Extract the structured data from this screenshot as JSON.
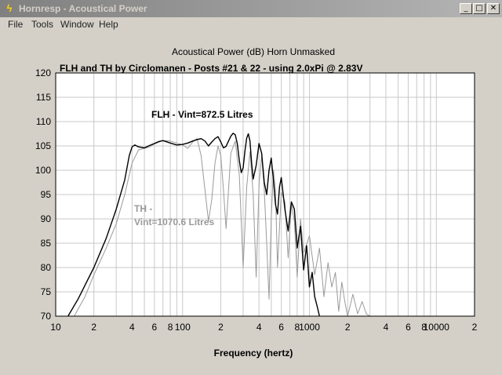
{
  "window": {
    "title": "Hornresp - Acoustical Power",
    "min_glyph": "_",
    "max_glyph": "□",
    "close_glyph": "✕"
  },
  "menu": [
    "File",
    "Tools",
    "Window",
    "Help"
  ],
  "chart_data": {
    "type": "line",
    "header": "Acoustical Power (dB)   Horn   Unmasked",
    "title": "FLH and TH by Circlomanen - Posts #21 & 22 - using 2.0xPi @ 2.83V",
    "xlabel": "Frequency (hertz)",
    "xscale": "log",
    "xlim": [
      10,
      20000
    ],
    "ylim": [
      70,
      120
    ],
    "y_ticks": [
      70,
      75,
      80,
      85,
      90,
      95,
      100,
      105,
      110,
      115,
      120
    ],
    "x_ticks": [
      {
        "v": 10,
        "label": "10"
      },
      {
        "v": 20,
        "label": "2"
      },
      {
        "v": 40,
        "label": "4"
      },
      {
        "v": 60,
        "label": "6"
      },
      {
        "v": 80,
        "label": "8"
      },
      {
        "v": 100,
        "label": "100"
      },
      {
        "v": 200,
        "label": "2"
      },
      {
        "v": 400,
        "label": "4"
      },
      {
        "v": 600,
        "label": "6"
      },
      {
        "v": 800,
        "label": "8"
      },
      {
        "v": 1000,
        "label": "1000"
      },
      {
        "v": 2000,
        "label": "2"
      },
      {
        "v": 4000,
        "label": "4"
      },
      {
        "v": 6000,
        "label": "6"
      },
      {
        "v": 8000,
        "label": "8"
      },
      {
        "v": 10000,
        "label": "10000"
      },
      {
        "v": 20000,
        "label": "2"
      }
    ],
    "grid": true,
    "series": [
      {
        "name": "FLH - Vint=872.5 Litres",
        "color": "#000000",
        "x": [
          12.5,
          15,
          20,
          25,
          30,
          35,
          38,
          40,
          42,
          45,
          50,
          55,
          60,
          65,
          70,
          80,
          90,
          100,
          110,
          120,
          130,
          140,
          150,
          160,
          170,
          180,
          190,
          200,
          210,
          220,
          230,
          240,
          250,
          260,
          270,
          280,
          290,
          300,
          310,
          320,
          330,
          340,
          350,
          360,
          380,
          400,
          420,
          440,
          460,
          480,
          500,
          520,
          540,
          560,
          580,
          600,
          640,
          680,
          720,
          760,
          800,
          850,
          900,
          950,
          1000,
          1050,
          1100,
          1150,
          1200
        ],
        "y": [
          70,
          73.5,
          80,
          86,
          92,
          98,
          103,
          104.8,
          105.2,
          104.8,
          104.6,
          105.1,
          105.5,
          105.9,
          106.1,
          105.6,
          105.2,
          105.3,
          105.6,
          106.0,
          106.3,
          106.5,
          106.0,
          105.0,
          105.8,
          106.5,
          106.9,
          105.8,
          104.6,
          104.9,
          106.0,
          107.0,
          107.6,
          107.3,
          105.5,
          102.0,
          99.5,
          100.5,
          104.0,
          106.6,
          107.5,
          106.0,
          101.5,
          98.2,
          101.0,
          105.5,
          103.5,
          97.5,
          95.0,
          100.0,
          102.5,
          98.0,
          93.0,
          91.0,
          96.5,
          98.5,
          92.0,
          87.5,
          93.5,
          92.0,
          84.0,
          88.5,
          79.5,
          84.5,
          76.0,
          79.0,
          74.0,
          72.0,
          70.0
        ]
      },
      {
        "name": "TH - Vint=1070.6 Litres",
        "color": "#9a9a9a",
        "x": [
          14,
          17,
          20,
          25,
          30,
          35,
          40,
          45,
          50,
          55,
          60,
          70,
          80,
          90,
          100,
          110,
          120,
          130,
          140,
          150,
          160,
          170,
          180,
          190,
          200,
          210,
          220,
          240,
          260,
          280,
          300,
          320,
          340,
          360,
          380,
          400,
          420,
          440,
          460,
          480,
          500,
          520,
          540,
          560,
          600,
          640,
          680,
          720,
          760,
          800,
          850,
          900,
          1000,
          1100,
          1200,
          1300,
          1400,
          1500,
          1600,
          1700,
          1800,
          1900,
          2000,
          2200,
          2400,
          2600,
          2800,
          3000
        ],
        "y": [
          70,
          74.0,
          78.5,
          84.0,
          89.0,
          95.0,
          101.5,
          104.2,
          104.5,
          104.8,
          105.4,
          106.1,
          106.0,
          105.6,
          105.2,
          104.5,
          105.8,
          106.5,
          103.0,
          96.0,
          89.5,
          94.0,
          101.5,
          105.0,
          103.0,
          96.0,
          88.0,
          103.5,
          106.0,
          99.0,
          80.0,
          96.5,
          103.8,
          95.0,
          78.0,
          97.0,
          103.0,
          96.0,
          85.0,
          73.5,
          90.0,
          100.0,
          96.0,
          80.0,
          95.5,
          93.5,
          82.0,
          93.0,
          89.5,
          78.0,
          90.0,
          83.0,
          86.5,
          78.5,
          84.0,
          74.0,
          81.0,
          76.0,
          79.0,
          71.0,
          77.0,
          73.0,
          70.0,
          74.5,
          70.5,
          73.0,
          70.5,
          70.0
        ]
      }
    ],
    "annotations": [
      {
        "text": "FLH - Vint=872.5 Litres",
        "color": "#000000"
      },
      {
        "text": "TH -",
        "color": "#9a9a9a"
      },
      {
        "text": "Vint=1070.6 Litres",
        "color": "#9a9a9a"
      }
    ]
  }
}
